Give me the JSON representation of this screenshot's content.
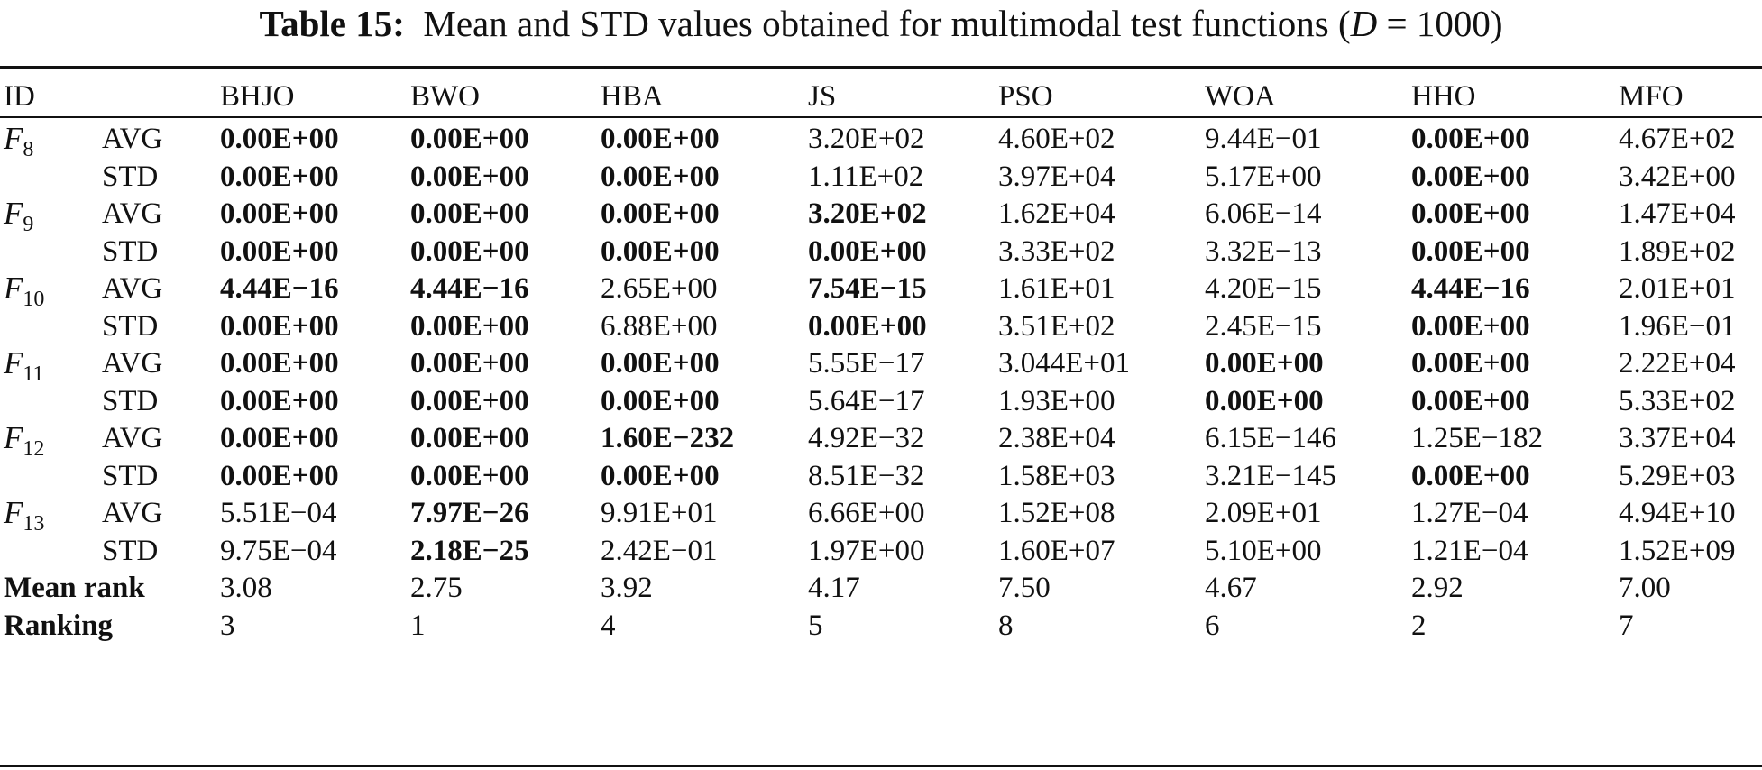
{
  "caption": {
    "label": "Table 15:",
    "text_before": "Mean and STD values obtained for multimodal test functions (",
    "var": "D",
    "text_after": " = 1000)"
  },
  "header": [
    "ID",
    "",
    "BHJO",
    "BWO",
    "HBA",
    "JS",
    "PSO",
    "WOA",
    "HHO",
    "MFO"
  ],
  "functions": [
    {
      "f": "F",
      "sub": "8",
      "rows": [
        {
          "stat": "AVG",
          "values": [
            "0.00E+00",
            "0.00E+00",
            "0.00E+00",
            "3.20E+02",
            "4.60E+02",
            "9.44E−01",
            "0.00E+00",
            "4.67E+02"
          ],
          "bold": [
            true,
            true,
            true,
            false,
            false,
            false,
            true,
            false
          ]
        },
        {
          "stat": "STD",
          "values": [
            "0.00E+00",
            "0.00E+00",
            "0.00E+00",
            "1.11E+02",
            "3.97E+04",
            "5.17E+00",
            "0.00E+00",
            "3.42E+00"
          ],
          "bold": [
            true,
            true,
            true,
            false,
            false,
            false,
            true,
            false
          ]
        }
      ]
    },
    {
      "f": "F",
      "sub": "9",
      "rows": [
        {
          "stat": "AVG",
          "values": [
            "0.00E+00",
            "0.00E+00",
            "0.00E+00",
            "3.20E+02",
            "1.62E+04",
            "6.06E−14",
            "0.00E+00",
            "1.47E+04"
          ],
          "bold": [
            true,
            true,
            true,
            true,
            false,
            false,
            true,
            false
          ]
        },
        {
          "stat": "STD",
          "values": [
            "0.00E+00",
            "0.00E+00",
            "0.00E+00",
            "0.00E+00",
            "3.33E+02",
            "3.32E−13",
            "0.00E+00",
            "1.89E+02"
          ],
          "bold": [
            true,
            true,
            true,
            true,
            false,
            false,
            true,
            false
          ]
        }
      ]
    },
    {
      "f": "F",
      "sub": "10",
      "rows": [
        {
          "stat": "AVG",
          "values": [
            "4.44E−16",
            "4.44E−16",
            "2.65E+00",
            "7.54E−15",
            "1.61E+01",
            "4.20E−15",
            "4.44E−16",
            "2.01E+01"
          ],
          "bold": [
            true,
            true,
            false,
            true,
            false,
            false,
            true,
            false
          ]
        },
        {
          "stat": "STD",
          "values": [
            "0.00E+00",
            "0.00E+00",
            "6.88E+00",
            "0.00E+00",
            "3.51E+02",
            "2.45E−15",
            "0.00E+00",
            "1.96E−01"
          ],
          "bold": [
            true,
            true,
            false,
            true,
            false,
            false,
            true,
            false
          ]
        }
      ]
    },
    {
      "f": "F",
      "sub": "11",
      "rows": [
        {
          "stat": "AVG",
          "values": [
            "0.00E+00",
            "0.00E+00",
            "0.00E+00",
            "5.55E−17",
            "3.044E+01",
            "0.00E+00",
            "0.00E+00",
            "2.22E+04"
          ],
          "bold": [
            true,
            true,
            true,
            false,
            false,
            true,
            true,
            false
          ]
        },
        {
          "stat": "STD",
          "values": [
            "0.00E+00",
            "0.00E+00",
            "0.00E+00",
            "5.64E−17",
            "1.93E+00",
            "0.00E+00",
            "0.00E+00",
            "5.33E+02"
          ],
          "bold": [
            true,
            true,
            true,
            false,
            false,
            true,
            true,
            false
          ]
        }
      ]
    },
    {
      "f": "F",
      "sub": "12",
      "rows": [
        {
          "stat": "AVG",
          "values": [
            "0.00E+00",
            "0.00E+00",
            "1.60E−232",
            "4.92E−32",
            "2.38E+04",
            "6.15E−146",
            "1.25E−182",
            "3.37E+04"
          ],
          "bold": [
            true,
            true,
            true,
            false,
            false,
            false,
            false,
            false
          ]
        },
        {
          "stat": "STD",
          "values": [
            "0.00E+00",
            "0.00E+00",
            "0.00E+00",
            "8.51E−32",
            "1.58E+03",
            "3.21E−145",
            "0.00E+00",
            "5.29E+03"
          ],
          "bold": [
            true,
            true,
            true,
            false,
            false,
            false,
            true,
            false
          ]
        }
      ]
    },
    {
      "f": "F",
      "sub": "13",
      "rows": [
        {
          "stat": "AVG",
          "values": [
            "5.51E−04",
            "7.97E−26",
            "9.91E+01",
            "6.66E+00",
            "1.52E+08",
            "2.09E+01",
            "1.27E−04",
            "4.94E+10"
          ],
          "bold": [
            false,
            true,
            false,
            false,
            false,
            false,
            false,
            false
          ]
        },
        {
          "stat": "STD",
          "values": [
            "9.75E−04",
            "2.18E−25",
            "2.42E−01",
            "1.97E+00",
            "1.60E+07",
            "5.10E+00",
            "1.21E−04",
            "1.52E+09"
          ],
          "bold": [
            false,
            true,
            false,
            false,
            false,
            false,
            false,
            false
          ]
        }
      ]
    }
  ],
  "mean_rank": {
    "label": "Mean rank",
    "values": [
      "3.08",
      "2.75",
      "3.92",
      "4.17",
      "7.50",
      "4.67",
      "2.92",
      "7.00"
    ]
  },
  "ranking": {
    "label": "Ranking",
    "values": [
      "3",
      "1",
      "4",
      "5",
      "8",
      "6",
      "2",
      "7"
    ]
  }
}
